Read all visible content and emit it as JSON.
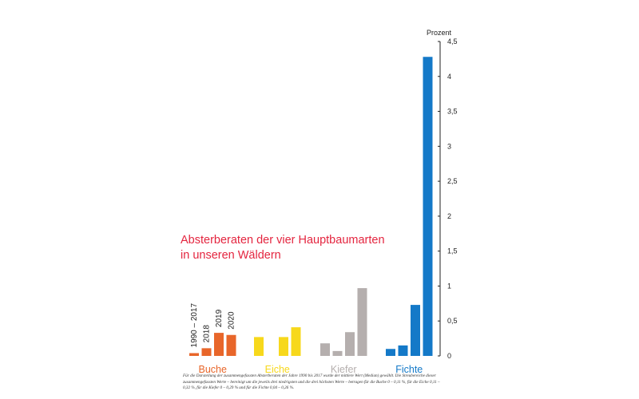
{
  "chart_data": {
    "type": "bar",
    "title_lines": [
      "Absterberaten der vier Hauptbaumarten",
      "in unseren Wäldern"
    ],
    "unit_label": "Prozent",
    "ylim": [
      0,
      4.5
    ],
    "y_ticks": [
      {
        "value": 0,
        "label": "0"
      },
      {
        "value": 0.5,
        "label": "0,5"
      },
      {
        "value": 1,
        "label": "1"
      },
      {
        "value": 1.5,
        "label": "1,5"
      },
      {
        "value": 2,
        "label": "2"
      },
      {
        "value": 2.5,
        "label": "2,5"
      },
      {
        "value": 3,
        "label": "3"
      },
      {
        "value": 3.5,
        "label": "3,5"
      },
      {
        "value": 4,
        "label": "4"
      },
      {
        "value": 4.5,
        "label": "4,5"
      }
    ],
    "year_labels": [
      "1990 – 2017",
      "2018",
      "2019",
      "2020"
    ],
    "groups": [
      {
        "name": "Buche",
        "color": "#e8662a",
        "values": [
          0.04,
          0.11,
          0.33,
          0.3
        ]
      },
      {
        "name": "Eiche",
        "color": "#f7d81c",
        "values": [
          0.27,
          null,
          0.27,
          0.41
        ]
      },
      {
        "name": "Kiefer",
        "color": "#b5afae",
        "values": [
          0.18,
          0.07,
          0.34,
          0.97
        ]
      },
      {
        "name": "Fichte",
        "color": "#1479c8",
        "values": [
          0.1,
          0.15,
          0.73,
          4.28
        ]
      }
    ]
  },
  "footnote": "Für die Darstellung der zusammengefassten Absterberaten der Jahre 1990 bis 2017 wurde der mittlere Wert (Median) gewählt. Die Streubereiche dieser zusammengefassten Werte – bereinigt um die jeweils drei niedrigsten und die drei höchsten Werte – betragen für die Buche 0 – 0,11 %, für die Eiche 0,11 – 0,32 %, für die Kiefer 0 – 0,29 % und für die Fichte 0,04 – 0,26 %."
}
